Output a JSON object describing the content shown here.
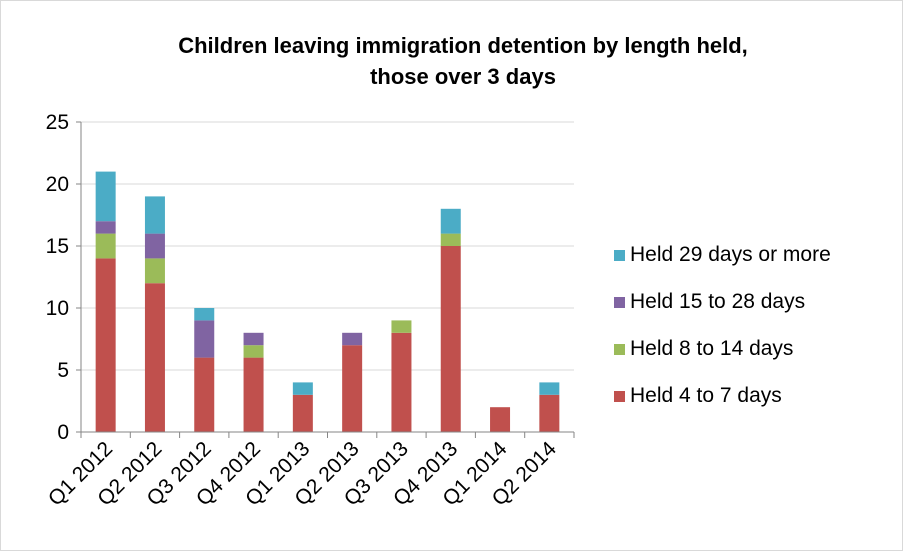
{
  "chart_data": {
    "type": "bar",
    "stacked": true,
    "title": [
      "Children leaving immigration detention by length held,",
      "those over 3 days"
    ],
    "xlabel": "",
    "ylabel": "",
    "ylim": [
      0,
      25
    ],
    "yticks": [
      "0",
      "5",
      "10",
      "15",
      "20",
      "25"
    ],
    "grid": true,
    "legend_position": "right",
    "categories": [
      "Q1 2012",
      "Q2 2012",
      "Q3 2012",
      "Q4 2012",
      "Q1 2013",
      "Q2 2013",
      "Q3 2013",
      "Q4 2013",
      "Q1 2014",
      "Q2 2014"
    ],
    "series": [
      {
        "name": "Held 4 to 7 days",
        "color": "#c0504d",
        "values": [
          14,
          12,
          6,
          6,
          3,
          7,
          8,
          15,
          2,
          3
        ]
      },
      {
        "name": "Held 8 to 14 days",
        "color": "#9bbb59",
        "values": [
          2,
          2,
          0,
          1,
          0,
          0,
          1,
          1,
          0,
          0
        ]
      },
      {
        "name": "Held 15 to 28 days",
        "color": "#8064a2",
        "values": [
          1,
          2,
          3,
          1,
          0,
          1,
          0,
          0,
          0,
          0
        ]
      },
      {
        "name": "Held 29 days or more",
        "color": "#4bacc6",
        "values": [
          4,
          3,
          1,
          0,
          1,
          0,
          0,
          2,
          0,
          1
        ]
      }
    ]
  }
}
